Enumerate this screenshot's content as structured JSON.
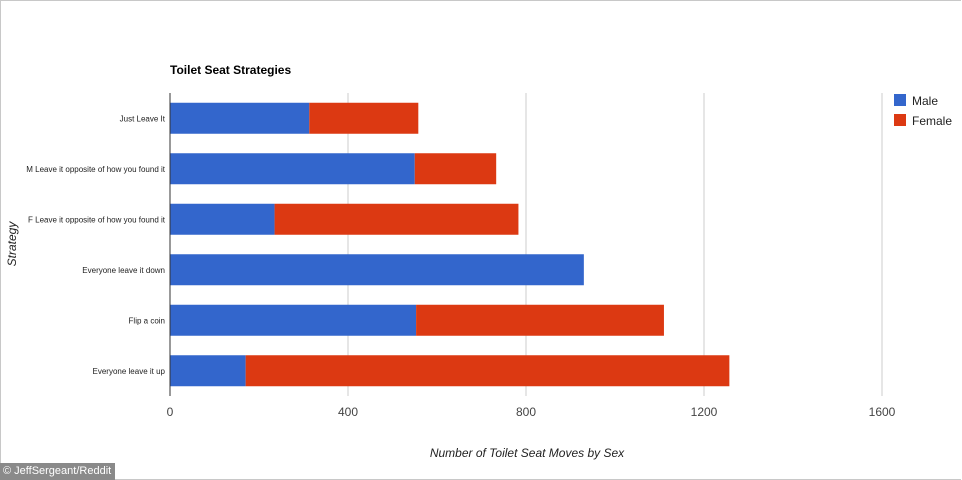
{
  "chart_data": {
    "type": "bar",
    "orientation": "horizontal",
    "stacked": true,
    "title": "Toilet Seat Strategies",
    "xlabel": "Number of Toilet Seat Moves by Sex",
    "ylabel": "Strategy",
    "categories": [
      "Just Leave It",
      "M Leave it opposite of how you found it",
      "F Leave it opposite of how you found it",
      "Everyone leave it down",
      "Flip a coin",
      "Everyone leave it up"
    ],
    "series": [
      {
        "name": "Male",
        "color": "#3366cc",
        "values": [
          313,
          550,
          235,
          930,
          553,
          170
        ]
      },
      {
        "name": "Female",
        "color": "#dc3912",
        "values": [
          245,
          183,
          548,
          0,
          557,
          1087
        ]
      }
    ],
    "xlim": [
      0,
      1600
    ],
    "xticks": [
      "0",
      "400",
      "800",
      "1200",
      "1600"
    ],
    "grid": true,
    "legend": "top-right"
  },
  "credit": "© JeffSergeant/Reddit"
}
